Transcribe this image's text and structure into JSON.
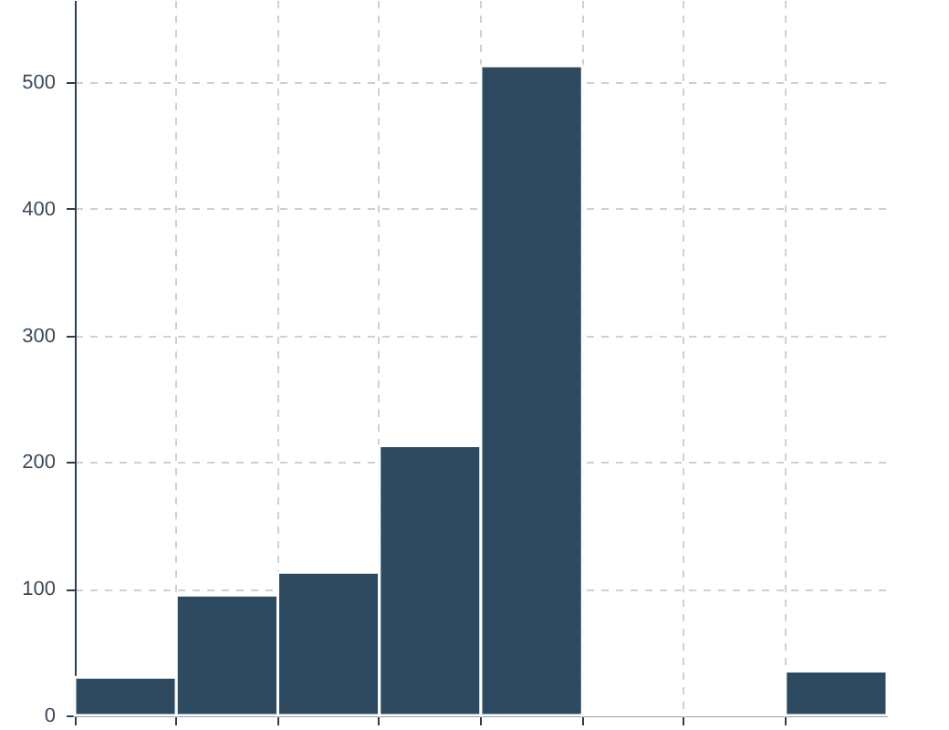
{
  "chart_data": {
    "type": "bar",
    "color": "#2e4a61",
    "categories": [
      null,
      null,
      null,
      null,
      null,
      null,
      null,
      null
    ],
    "values": [
      30,
      95,
      113,
      213,
      513,
      1,
      2,
      35
    ],
    "ylim": [
      0,
      565
    ],
    "yticks": [
      0,
      100,
      200,
      300,
      400,
      500
    ],
    "grid": true,
    "tick_labels": "y"
  }
}
